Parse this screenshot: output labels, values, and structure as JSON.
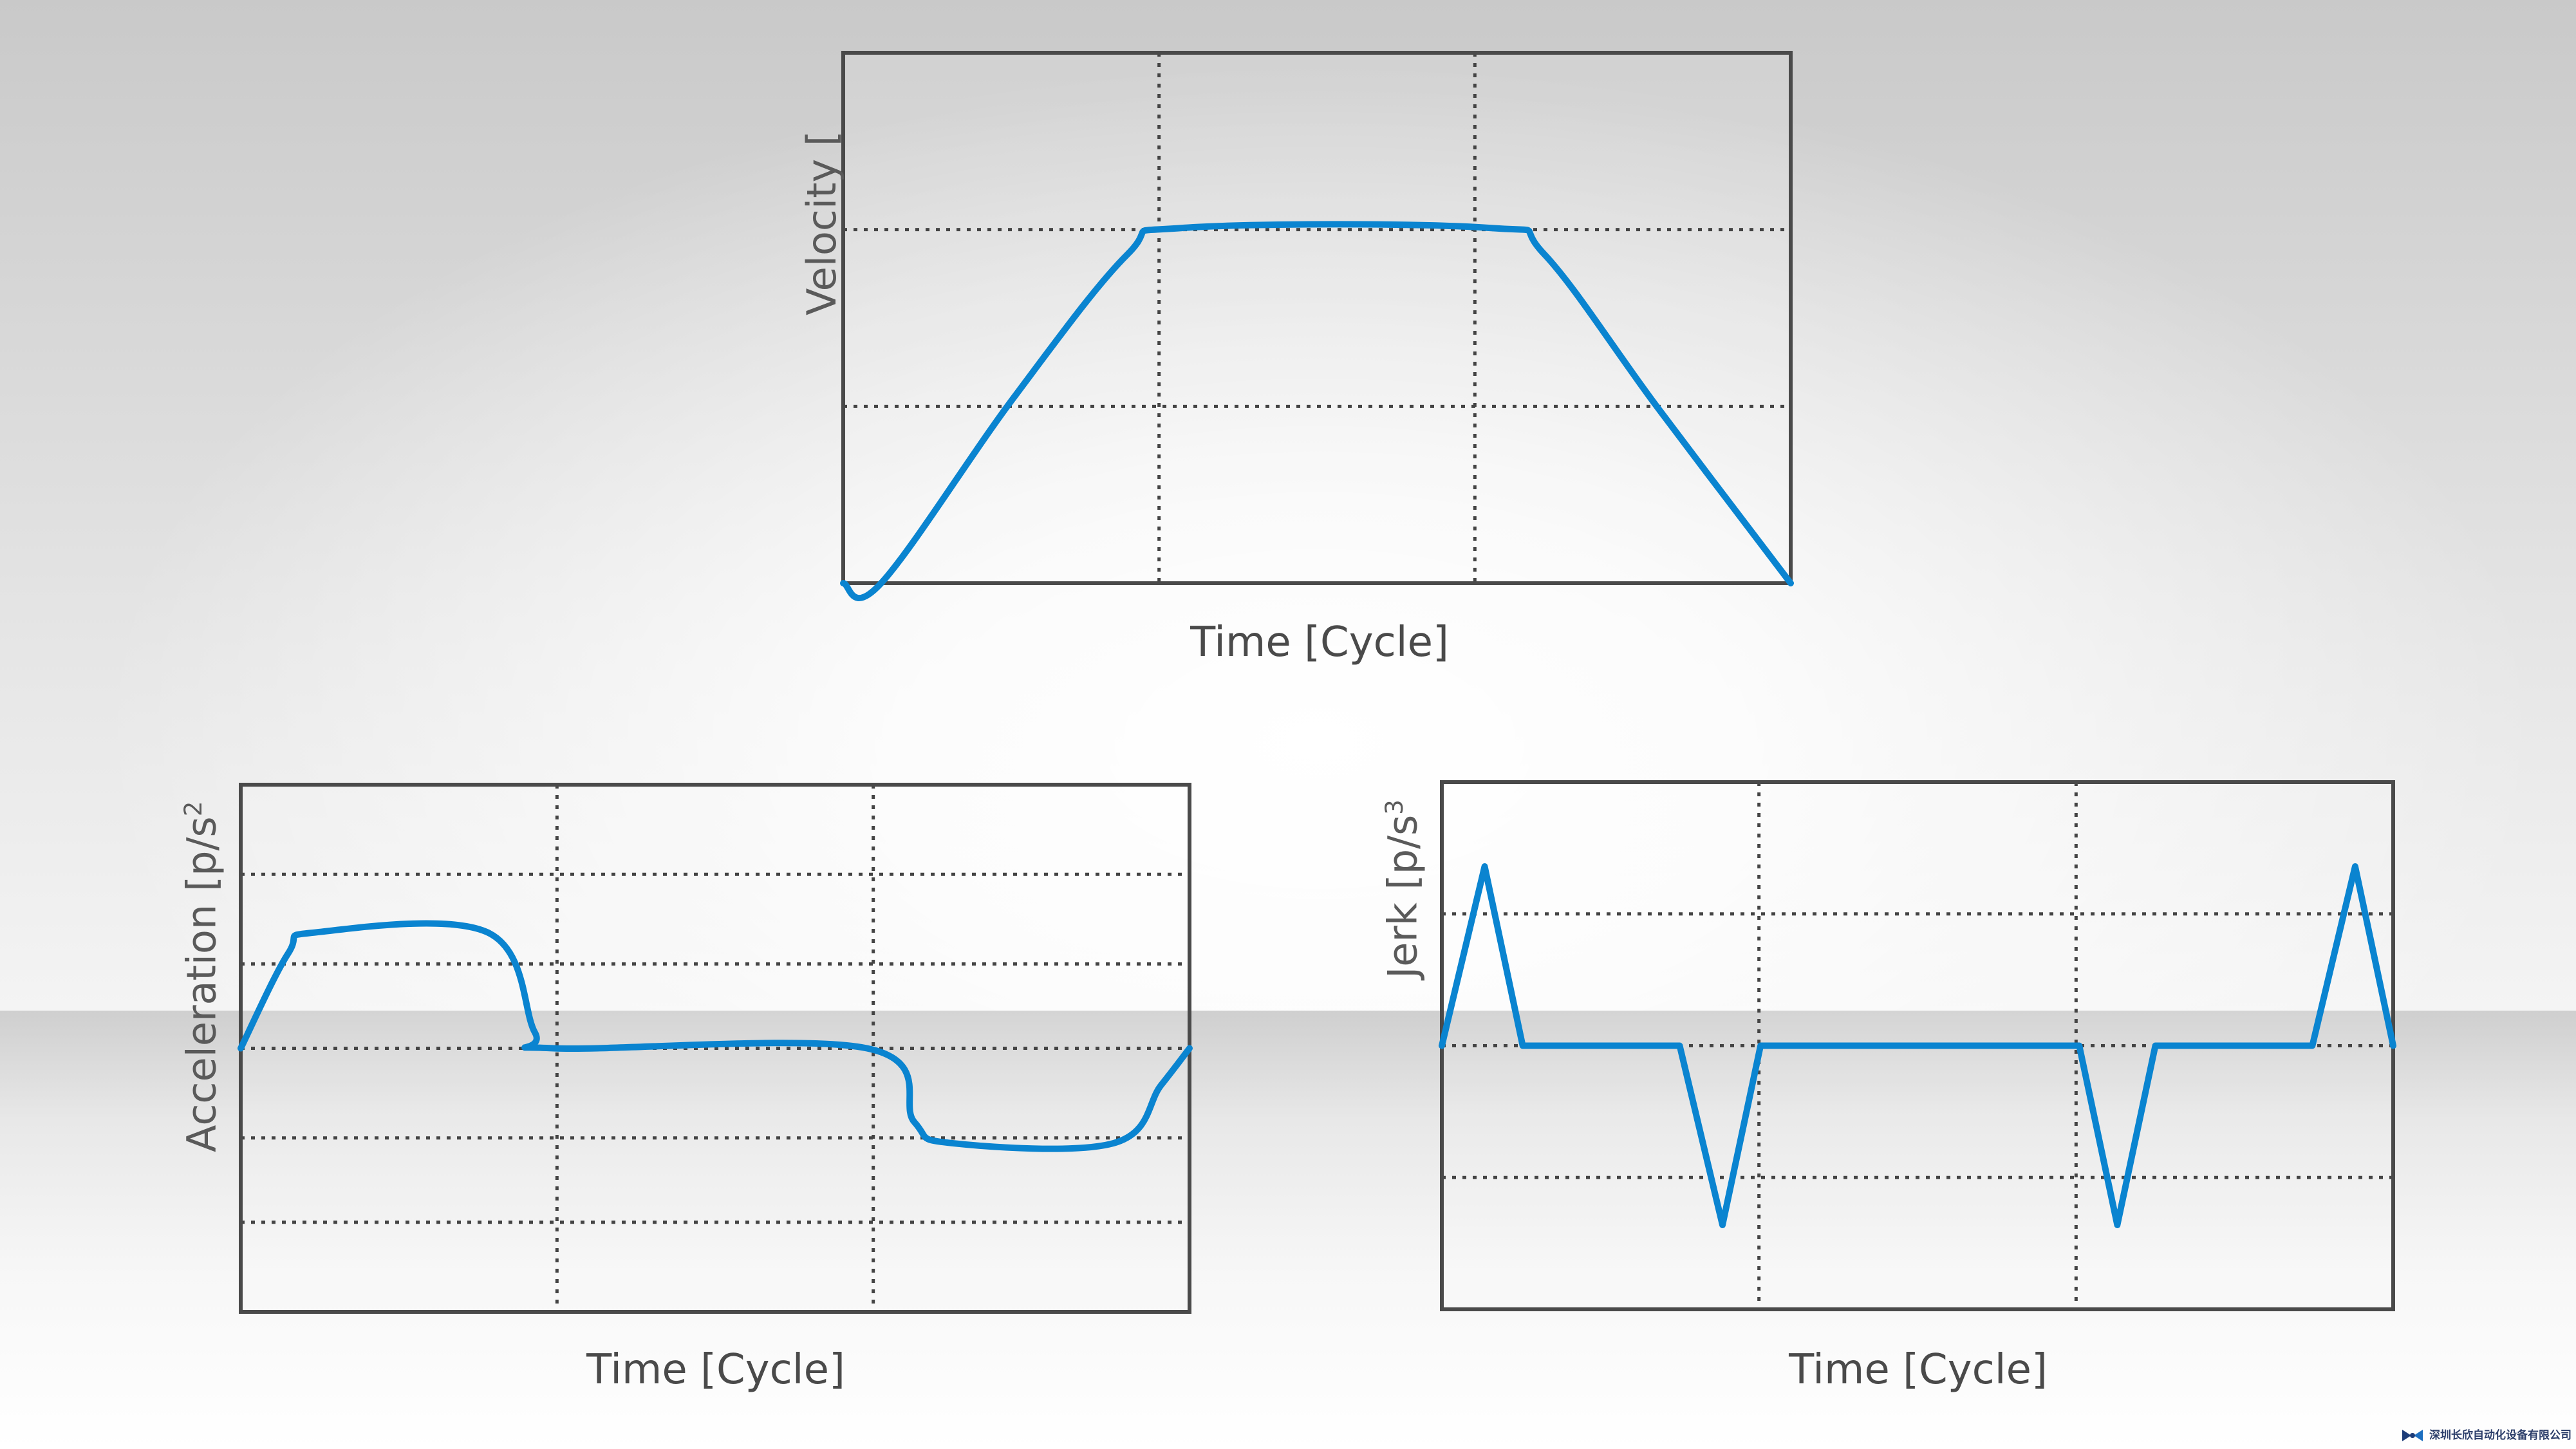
{
  "chart_data": [
    {
      "id": "velocity",
      "type": "line",
      "ylabel": "Velocity [",
      "xlabel": "Time [Cycle]",
      "series": [
        {
          "color": "#0a84d0",
          "points": [
            [
              0,
              0
            ],
            [
              0.04,
              0
            ],
            [
              0.18,
              0.35
            ],
            [
              0.3,
              0.62
            ],
            [
              0.36,
              0.67
            ],
            [
              0.68,
              0.67
            ],
            [
              0.74,
              0.62
            ],
            [
              0.86,
              0.33
            ],
            [
              1,
              0
            ]
          ]
        }
      ],
      "xlim": [
        0,
        1
      ],
      "ylim": [
        0,
        1
      ],
      "grid": true
    },
    {
      "id": "acceleration",
      "type": "line",
      "ylabel": "Acceleration [p/s",
      "ylabel_sup": "2",
      "xlabel": "Time [Cycle]",
      "series": [
        {
          "color": "#0a84d0",
          "points": [
            [
              0,
              0
            ],
            [
              0.05,
              0.18
            ],
            [
              0.08,
              0.22
            ],
            [
              0.26,
              0.22
            ],
            [
              0.31,
              0.03
            ],
            [
              0.33,
              0
            ],
            [
              0.66,
              0
            ],
            [
              0.71,
              -0.14
            ],
            [
              0.75,
              -0.18
            ],
            [
              0.92,
              -0.18
            ],
            [
              0.97,
              -0.07
            ],
            [
              1,
              0
            ]
          ]
        }
      ],
      "xlim": [
        0,
        1
      ],
      "ylim": [
        -0.5,
        0.5
      ],
      "grid": true
    },
    {
      "id": "jerk",
      "type": "line",
      "ylabel": "Jerk [p/s",
      "ylabel_sup": "3",
      "xlabel": "Time [Cycle]",
      "series": [
        {
          "color": "#0a84d0",
          "points": [
            [
              0,
              0
            ],
            [
              0.045,
              0.34
            ],
            [
              0.085,
              0
            ],
            [
              0.25,
              0
            ],
            [
              0.295,
              -0.34
            ],
            [
              0.335,
              0
            ],
            [
              0.67,
              0
            ],
            [
              0.71,
              -0.34
            ],
            [
              0.75,
              0
            ],
            [
              0.915,
              0
            ],
            [
              0.96,
              0.34
            ],
            [
              1,
              0
            ]
          ]
        }
      ],
      "xlim": [
        0,
        1
      ],
      "ylim": [
        -0.5,
        0.5
      ],
      "grid": true
    }
  ],
  "logo": {
    "icon": "company-logo-icon",
    "text": "深圳长欣自动化设备有限公司"
  }
}
